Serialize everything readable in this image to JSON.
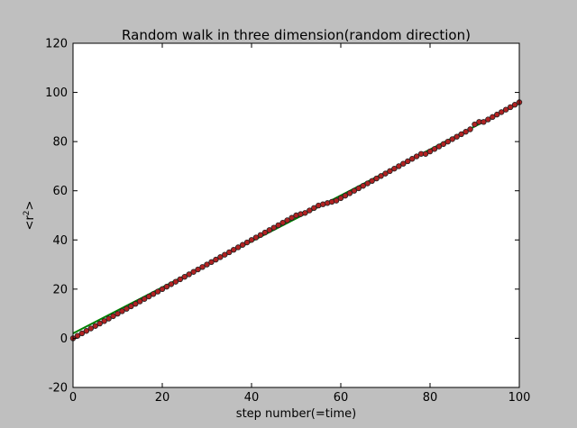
{
  "chart_data": {
    "type": "scatter",
    "title": "Random walk in three dimension(random direction)",
    "xlabel": "step number(=time)",
    "ylabel": "<r²>",
    "ylabel_base": "<r",
    "ylabel_sup": "2",
    "ylabel_close": ">",
    "xlim": [
      0,
      100
    ],
    "ylim": [
      -20,
      120
    ],
    "xticks": [
      0,
      20,
      40,
      60,
      80,
      100
    ],
    "yticks": [
      -20,
      0,
      20,
      40,
      60,
      80,
      100,
      120
    ],
    "grid": false,
    "colors": {
      "points_fill": "#b22222",
      "points_edge": "#222222",
      "fit_line": "#008000",
      "figure_bg": "#bfbfbf",
      "axes_bg": "#ffffff"
    },
    "series": [
      {
        "kind": "points",
        "x": [
          0,
          1,
          2,
          3,
          4,
          5,
          6,
          7,
          8,
          9,
          10,
          11,
          12,
          13,
          14,
          15,
          16,
          17,
          18,
          19,
          20,
          21,
          22,
          23,
          24,
          25,
          26,
          27,
          28,
          29,
          30,
          31,
          32,
          33,
          34,
          35,
          36,
          37,
          38,
          39,
          40,
          41,
          42,
          43,
          44,
          45,
          46,
          47,
          48,
          49,
          50,
          51,
          52,
          53,
          54,
          55,
          56,
          57,
          58,
          59,
          60,
          61,
          62,
          63,
          64,
          65,
          66,
          67,
          68,
          69,
          70,
          71,
          72,
          73,
          74,
          75,
          76,
          77,
          78,
          79,
          80,
          81,
          82,
          83,
          84,
          85,
          86,
          87,
          88,
          89,
          90,
          91,
          92,
          93,
          94,
          95,
          96,
          97,
          98,
          99,
          100
        ],
        "y": [
          0,
          1,
          2,
          3,
          4,
          5,
          6,
          7,
          8,
          9,
          10,
          11,
          12,
          13,
          14,
          15,
          16,
          17,
          18,
          19,
          20,
          21,
          22,
          23,
          24,
          25,
          26,
          27,
          28,
          29,
          30,
          31,
          32,
          33,
          34,
          35,
          36,
          37,
          38,
          39,
          40,
          41,
          42,
          43,
          44,
          45,
          46,
          47,
          48,
          49,
          50,
          50.5,
          51,
          52,
          53,
          54,
          54.5,
          55,
          55.5,
          56,
          57,
          58,
          59,
          60,
          61,
          62,
          63,
          64,
          65,
          66,
          67,
          68,
          69,
          70,
          71,
          72,
          73,
          74,
          75,
          75,
          76,
          77,
          78,
          79,
          80,
          81,
          82,
          83,
          84,
          85,
          87,
          88,
          88,
          89,
          90,
          91,
          92,
          93,
          94,
          95,
          96
        ]
      },
      {
        "kind": "fit-line",
        "x": [
          0,
          100
        ],
        "y": [
          2,
          95.5
        ]
      }
    ]
  }
}
